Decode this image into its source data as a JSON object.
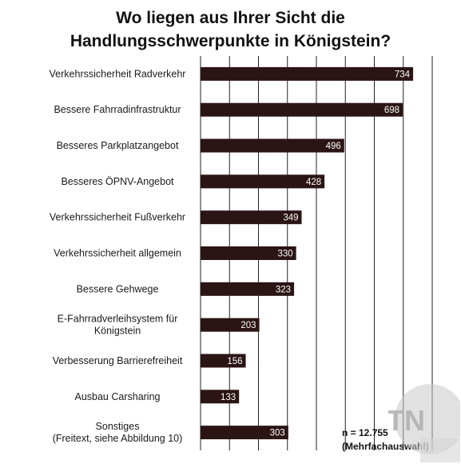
{
  "chart_data": {
    "type": "bar",
    "orientation": "horizontal",
    "title_lines": [
      "Wo liegen aus Ihrer Sicht die",
      "Handlungsschwerpunkte in Königstein?"
    ],
    "categories": [
      [
        "Verkehrssicherheit Radverkehr"
      ],
      [
        "Bessere Fahrradinfrastruktur"
      ],
      [
        "Besseres Parkplatzangebot"
      ],
      [
        "Besseres ÖPNV-Angebot"
      ],
      [
        "Verkehrssicherheit Fußverkehr"
      ],
      [
        "Verkehrssicherheit allgemein"
      ],
      [
        "Bessere Gehwege"
      ],
      [
        "E-Fahrradverleihsystem für",
        "Königstein"
      ],
      [
        "Verbesserung Barrierefreiheit"
      ],
      [
        "Ausbau Carsharing"
      ],
      [
        "Sonstiges",
        "(Freitext, siehe Abbildung 10)"
      ]
    ],
    "values": [
      734,
      698,
      496,
      428,
      349,
      330,
      323,
      203,
      156,
      133,
      303
    ],
    "xlim": [
      0,
      800
    ],
    "grid": true,
    "bar_color": "#2b1414",
    "value_label_color": "#ffffff",
    "grid_color": "#222222"
  },
  "note": {
    "line1": "n = 12.755",
    "line2": "(Mehrfachauswahl)"
  }
}
